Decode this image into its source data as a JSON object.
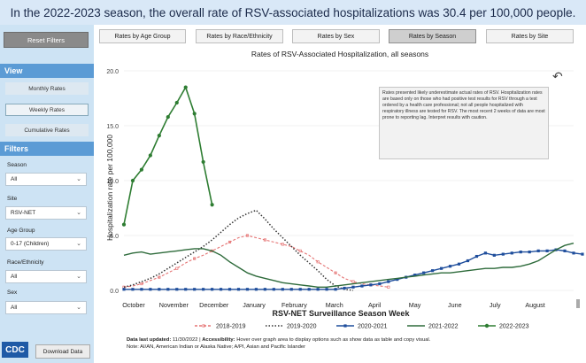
{
  "banner": {
    "text": "In the 2022-2023 season, the overall rate of RSV-associated hospitalizations was 30.4 per 100,000 people."
  },
  "sidebar": {
    "reset_label": "Reset Filters",
    "view_header": "View",
    "views": [
      "Monthly Rates",
      "Weekly Rates",
      "Cumulative Rates"
    ],
    "filters_header": "Filters",
    "filters": [
      {
        "label": "Season",
        "value": "All"
      },
      {
        "label": "Site",
        "value": "RSV-NET"
      },
      {
        "label": "Age Group",
        "value": "0-17 (Children)"
      },
      {
        "label": "Race/Ethnicity",
        "value": "All"
      },
      {
        "label": "Sex",
        "value": "All"
      }
    ],
    "logo_text": "CDC",
    "download_label": "Download Data"
  },
  "tabs": [
    "Rates by Age Group",
    "Rates by Race/Ethnicity",
    "Rates by Sex",
    "Rates by Season",
    "Rates by Site"
  ],
  "active_tab": "Rates by Season",
  "note": "Rates presented likely underestimate actual rates of RSV. Hospitalization rates are based only on those who had positive test results for RSV through a test ordered by a health care professional; not all people hospitalized with respiratory illness are tested for RSV. The most recent 2 weeks of data are most prone to reporting lag. Interpret results with caution.",
  "footer": {
    "updated_label": "Data last updated:",
    "updated_value": "11/30/2022",
    "accessibility_label": "Accessibility:",
    "accessibility_text": "Hover over graph area to display options such as show data as table and copy visual.",
    "note_line": "Note: AI/AN, American Indian or Alaska Native; A/PI, Asian and Pacific Islander"
  },
  "chart_data": {
    "type": "line",
    "title": "Rates of RSV-Associated Hospitalization, all seasons",
    "xlabel": "RSV-NET Surveillance Season Week",
    "ylabel": "Hospitalization rate per 100,000",
    "ylim": [
      0,
      20
    ],
    "yticks": [
      "0.0",
      "5.0",
      "10.0",
      "15.0",
      "20.0"
    ],
    "month_ticks": [
      "October",
      "November",
      "December",
      "January",
      "February",
      "March",
      "April",
      "May",
      "June",
      "July",
      "August"
    ],
    "x_weeks": 52,
    "legend_position": "bottom",
    "series": [
      {
        "name": "2018-2019",
        "color": "#e57373",
        "style": "dash-dot-marker",
        "values": [
          0.3,
          0.4,
          0.6,
          0.9,
          1.2,
          1.6,
          2.0,
          2.5,
          2.9,
          3.2,
          3.6,
          4.0,
          4.4,
          4.8,
          5.0,
          4.8,
          4.6,
          4.4,
          4.2,
          4.0,
          3.6,
          3.2,
          2.6,
          2.1,
          1.6,
          1.1,
          0.8,
          0.6,
          0.5,
          0.4,
          0.3
        ]
      },
      {
        "name": "2019-2020",
        "color": "#333333",
        "style": "dotted",
        "values": [
          0.3,
          0.5,
          0.8,
          1.1,
          1.5,
          2.0,
          2.5,
          3.0,
          3.5,
          4.0,
          4.6,
          5.3,
          6.0,
          6.6,
          7.0,
          7.3,
          6.5,
          5.6,
          4.8,
          4.0,
          3.2,
          2.5,
          1.8,
          1.0,
          0.4,
          0.1,
          0.0
        ]
      },
      {
        "name": "2020-2021",
        "color": "#1f4e9c",
        "style": "square-marker",
        "values": [
          0.1,
          0.1,
          0.1,
          0.1,
          0.1,
          0.1,
          0.1,
          0.1,
          0.1,
          0.1,
          0.1,
          0.1,
          0.1,
          0.1,
          0.1,
          0.1,
          0.1,
          0.1,
          0.1,
          0.1,
          0.1,
          0.1,
          0.1,
          0.1,
          0.1,
          0.2,
          0.3,
          0.4,
          0.5,
          0.6,
          0.8,
          1.0,
          1.2,
          1.4,
          1.6,
          1.8,
          2.0,
          2.2,
          2.4,
          2.7,
          3.1,
          3.4,
          3.2,
          3.3,
          3.4,
          3.5,
          3.5,
          3.6,
          3.6,
          3.7,
          3.6,
          3.4,
          3.3
        ]
      },
      {
        "name": "2021-2022",
        "color": "#2e6b3b",
        "style": "solid",
        "values": [
          3.2,
          3.4,
          3.5,
          3.3,
          3.4,
          3.5,
          3.6,
          3.7,
          3.8,
          3.8,
          3.6,
          3.2,
          2.6,
          2.1,
          1.6,
          1.3,
          1.1,
          0.9,
          0.7,
          0.6,
          0.5,
          0.4,
          0.3,
          0.3,
          0.4,
          0.5,
          0.6,
          0.7,
          0.8,
          0.9,
          1.0,
          1.1,
          1.2,
          1.3,
          1.4,
          1.5,
          1.6,
          1.6,
          1.7,
          1.8,
          1.9,
          2.0,
          2.0,
          2.1,
          2.1,
          2.2,
          2.4,
          2.7,
          3.2,
          3.7,
          4.1,
          4.3
        ]
      },
      {
        "name": "2022-2023",
        "color": "#2e7d32",
        "style": "circle-marker",
        "values": [
          6.0,
          10.0,
          11.0,
          12.3,
          14.1,
          15.8,
          17.1,
          18.5,
          16.1,
          11.7,
          7.8
        ]
      }
    ]
  }
}
